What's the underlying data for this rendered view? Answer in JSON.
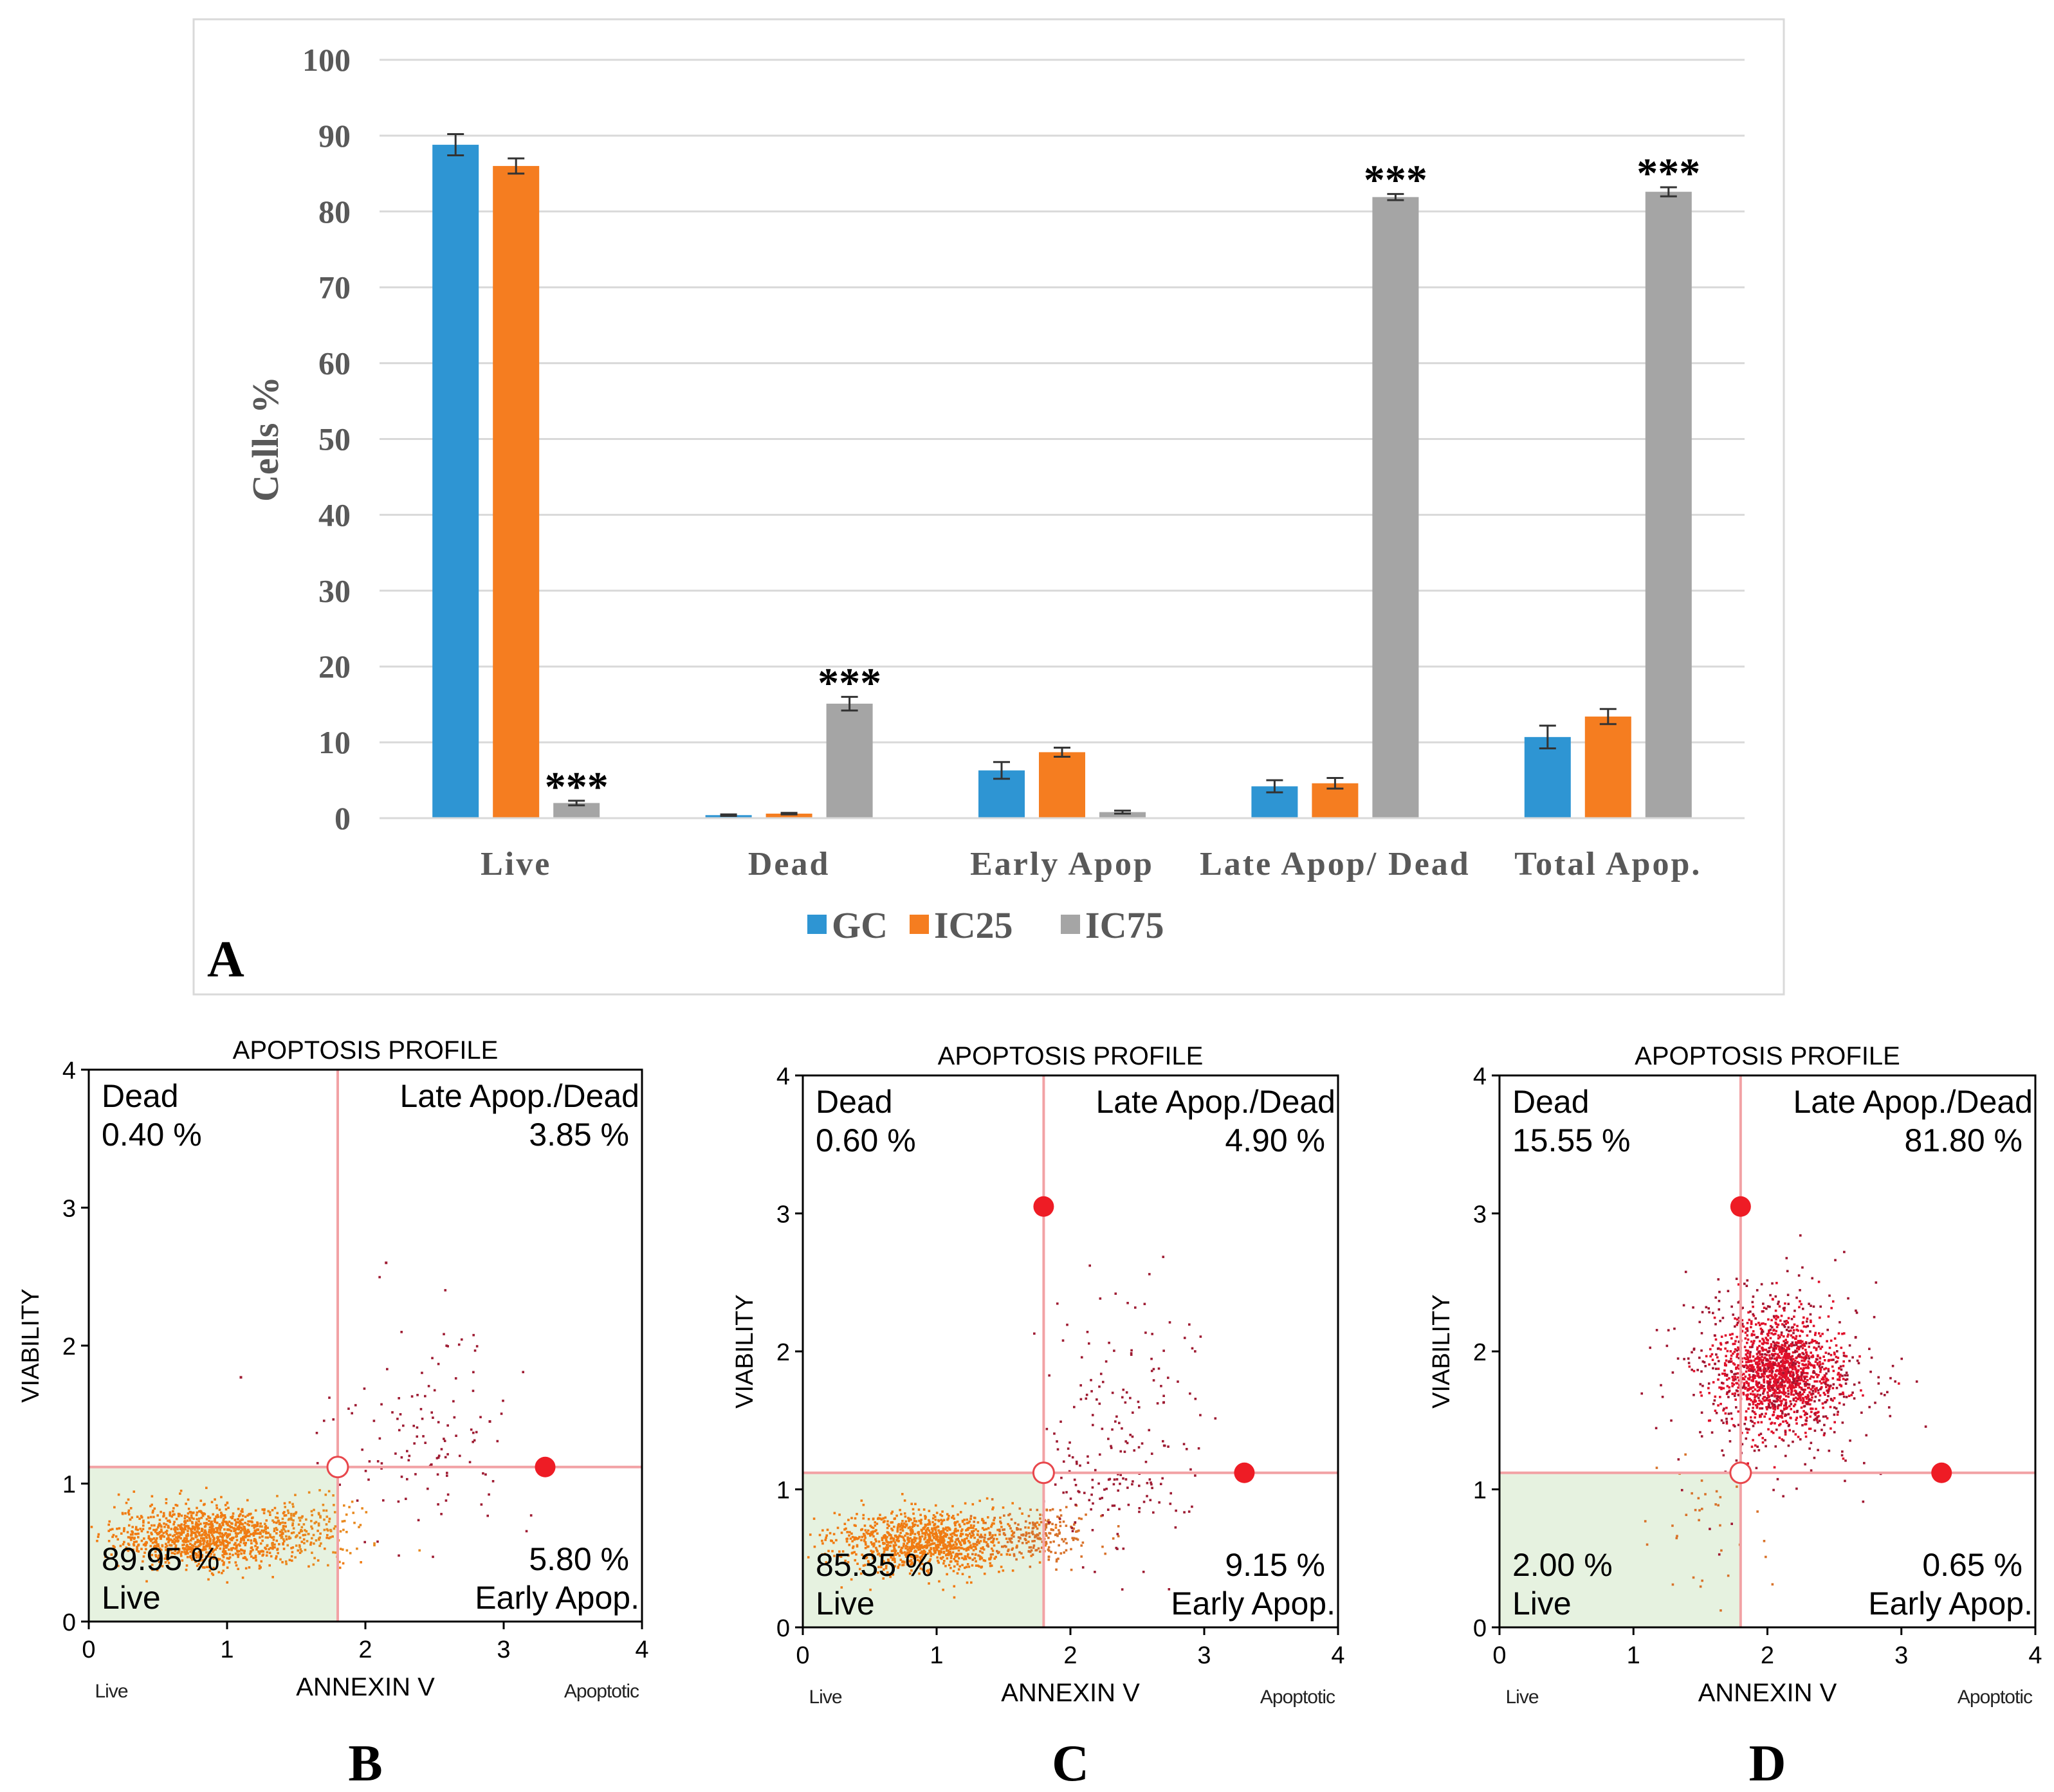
{
  "panel_a_letter": "A",
  "chart_data": [
    {
      "type": "bar",
      "panel": "A",
      "title": "",
      "xlabel": "",
      "ylabel": "Cells %",
      "ylim": [
        0,
        100
      ],
      "yticks": [
        0,
        10,
        20,
        30,
        40,
        50,
        60,
        70,
        80,
        90,
        100
      ],
      "grid": true,
      "legend_position": "bottom",
      "categories": [
        "Live",
        "Dead",
        "Early Apop",
        "Late Apop/ Dead",
        "Total Apop."
      ],
      "series": [
        {
          "name": "GC",
          "color": "#2e95d3",
          "values": [
            88.8,
            0.4,
            6.3,
            4.2,
            10.7
          ],
          "errors": [
            1.4,
            0.1,
            1.1,
            0.8,
            1.5
          ]
        },
        {
          "name": "IC25",
          "color": "#f57d20",
          "values": [
            86.0,
            0.6,
            8.7,
            4.6,
            13.4
          ],
          "errors": [
            1.0,
            0.1,
            0.6,
            0.7,
            1.0
          ]
        },
        {
          "name": "IC75",
          "color": "#a5a5a5",
          "values": [
            2.0,
            15.1,
            0.8,
            81.9,
            82.6
          ],
          "errors": [
            0.3,
            0.9,
            0.2,
            0.4,
            0.6
          ]
        }
      ],
      "significance": [
        {
          "category": "Live",
          "series": "IC75",
          "label": "***"
        },
        {
          "category": "Dead",
          "series": "IC75",
          "label": "***"
        },
        {
          "category": "Late Apop/ Dead",
          "series": "IC75",
          "label": "***"
        },
        {
          "category": "Total Apop.",
          "series": "IC75",
          "label": "***"
        }
      ]
    },
    {
      "type": "scatter",
      "panel": "B",
      "title": "APOPTOSIS PROFILE",
      "xlabel": "ANNEXIN V",
      "ylabel": "VIABILITY",
      "xlim": [
        0,
        4
      ],
      "ylim": [
        0,
        4
      ],
      "xticks": [
        0,
        1,
        2,
        3,
        4
      ],
      "yticks": [
        0,
        1,
        2,
        3,
        4
      ],
      "x_end_labels": [
        "Live",
        "Apoptotic"
      ],
      "gates": {
        "x": 1.8,
        "y": 1.12
      },
      "gate_handles": [
        {
          "x": 1.8,
          "y": 1.12,
          "style": "hollow"
        },
        {
          "x": 3.3,
          "y": 1.12,
          "style": "filled"
        }
      ],
      "quadrants": {
        "upper_left": {
          "name": "Dead",
          "percent": "0.40 %"
        },
        "upper_right": {
          "name": "Late Apop./Dead",
          "percent": "3.85 %"
        },
        "lower_left": {
          "name": "Live",
          "percent": "89.95 %"
        },
        "lower_right": {
          "name": "Early Apop.",
          "percent": "5.80 %"
        }
      },
      "clusters": [
        {
          "cx": 0.85,
          "cy": 0.62,
          "sx": 0.33,
          "sy": 0.11,
          "n": 1100,
          "color": "#f07b12"
        },
        {
          "cx": 1.6,
          "cy": 0.68,
          "sx": 0.22,
          "sy": 0.12,
          "n": 160,
          "color": "#e8891f"
        },
        {
          "cx": 2.45,
          "cy": 1.35,
          "sx": 0.32,
          "sy": 0.35,
          "n": 120,
          "color": "#9e1b32"
        }
      ],
      "points_shown": [
        {
          "x": 2.15,
          "y": 2.6
        },
        {
          "x": 1.1,
          "y": 1.77
        },
        {
          "x": 2.9,
          "y": 1.45
        }
      ]
    },
    {
      "type": "scatter",
      "panel": "C",
      "title": "APOPTOSIS PROFILE",
      "xlabel": "ANNEXIN V",
      "ylabel": "VIABILITY",
      "xlim": [
        0,
        4
      ],
      "ylim": [
        0,
        4
      ],
      "xticks": [
        0,
        1,
        2,
        3,
        4
      ],
      "yticks": [
        0,
        1,
        2,
        3,
        4
      ],
      "x_end_labels": [
        "Live",
        "Apoptotic"
      ],
      "gates": {
        "x": 1.8,
        "y": 1.12
      },
      "gate_handles": [
        {
          "x": 1.8,
          "y": 1.12,
          "style": "hollow"
        },
        {
          "x": 1.8,
          "y": 3.05,
          "style": "filled"
        },
        {
          "x": 3.3,
          "y": 1.12,
          "style": "filled"
        }
      ],
      "quadrants": {
        "upper_left": {
          "name": "Dead",
          "percent": "0.60 %"
        },
        "upper_right": {
          "name": "Late Apop./Dead",
          "percent": "4.90 %"
        },
        "lower_left": {
          "name": "Live",
          "percent": "85.35 %"
        },
        "lower_right": {
          "name": "Early Apop.",
          "percent": "9.15 %"
        }
      },
      "clusters": [
        {
          "cx": 0.9,
          "cy": 0.62,
          "sx": 0.34,
          "sy": 0.11,
          "n": 1050,
          "color": "#f07b12"
        },
        {
          "cx": 1.75,
          "cy": 0.66,
          "sx": 0.22,
          "sy": 0.1,
          "n": 220,
          "color": "#d8722a"
        },
        {
          "cx": 2.3,
          "cy": 1.05,
          "sx": 0.3,
          "sy": 0.25,
          "n": 120,
          "color": "#9e1b32"
        },
        {
          "cx": 2.4,
          "cy": 1.8,
          "sx": 0.3,
          "sy": 0.35,
          "n": 80,
          "color": "#9e1b32"
        }
      ],
      "points_shown": []
    },
    {
      "type": "scatter",
      "panel": "D",
      "title": "APOPTOSIS PROFILE",
      "xlabel": "ANNEXIN V",
      "ylabel": "VIABILITY",
      "xlim": [
        0,
        4
      ],
      "ylim": [
        0,
        4
      ],
      "xticks": [
        0,
        1,
        2,
        3,
        4
      ],
      "yticks": [
        0,
        1,
        2,
        3,
        4
      ],
      "x_end_labels": [
        "Live",
        "Apoptotic"
      ],
      "gates": {
        "x": 1.8,
        "y": 1.12
      },
      "gate_handles": [
        {
          "x": 1.8,
          "y": 1.12,
          "style": "hollow"
        },
        {
          "x": 1.8,
          "y": 3.05,
          "style": "filled"
        },
        {
          "x": 3.3,
          "y": 1.12,
          "style": "filled"
        }
      ],
      "quadrants": {
        "upper_left": {
          "name": "Dead",
          "percent": "15.55 %"
        },
        "upper_right": {
          "name": "Late Apop./Dead",
          "percent": "81.80 %"
        },
        "lower_left": {
          "name": "Live",
          "percent": "2.00 %"
        },
        "lower_right": {
          "name": "Early Apop.",
          "percent": "0.65 %"
        }
      },
      "clusters": [
        {
          "cx": 2.08,
          "cy": 1.85,
          "sx": 0.22,
          "sy": 0.2,
          "n": 1300,
          "color": "#e0102a"
        },
        {
          "cx": 2.1,
          "cy": 1.8,
          "sx": 0.38,
          "sy": 0.38,
          "n": 450,
          "color": "#a01530"
        },
        {
          "cx": 1.6,
          "cy": 0.8,
          "sx": 0.2,
          "sy": 0.3,
          "n": 35,
          "color": "#d8722a"
        }
      ],
      "points_shown": []
    }
  ]
}
